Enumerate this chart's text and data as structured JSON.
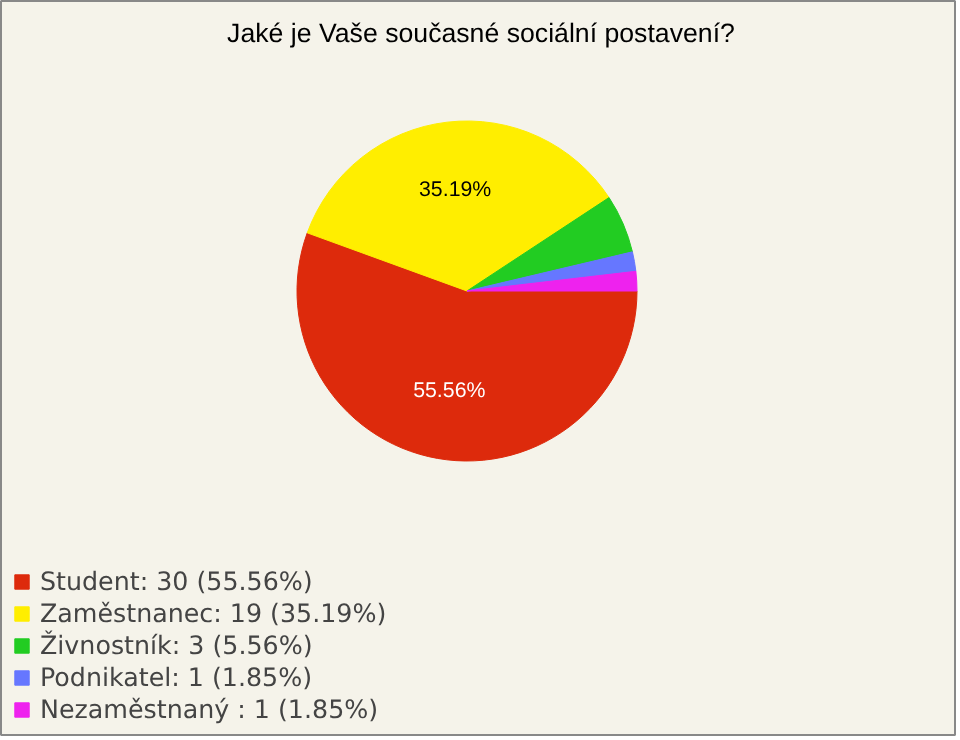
{
  "chart_data": {
    "type": "pie",
    "title": "Jaké je Vaše současné sociální postavení?",
    "categories": [
      "Student: 30 (55.56%)",
      "Zaměstnanec: 19 (35.19%)",
      "Živnostník: 3 (5.56%)",
      "Podnikatel: 1 (1.85%)",
      "Nezaměstnaný : 1 (1.85%)"
    ],
    "values": [
      55.56,
      35.19,
      5.56,
      1.85,
      1.85
    ],
    "colors": [
      "#dd2a0c",
      "#ffee00",
      "#22cc22",
      "#6677ff",
      "#ee22ee"
    ],
    "value_labels": [
      "55.56%",
      "35.19%",
      null,
      null,
      null
    ],
    "legend": "bottom left"
  }
}
